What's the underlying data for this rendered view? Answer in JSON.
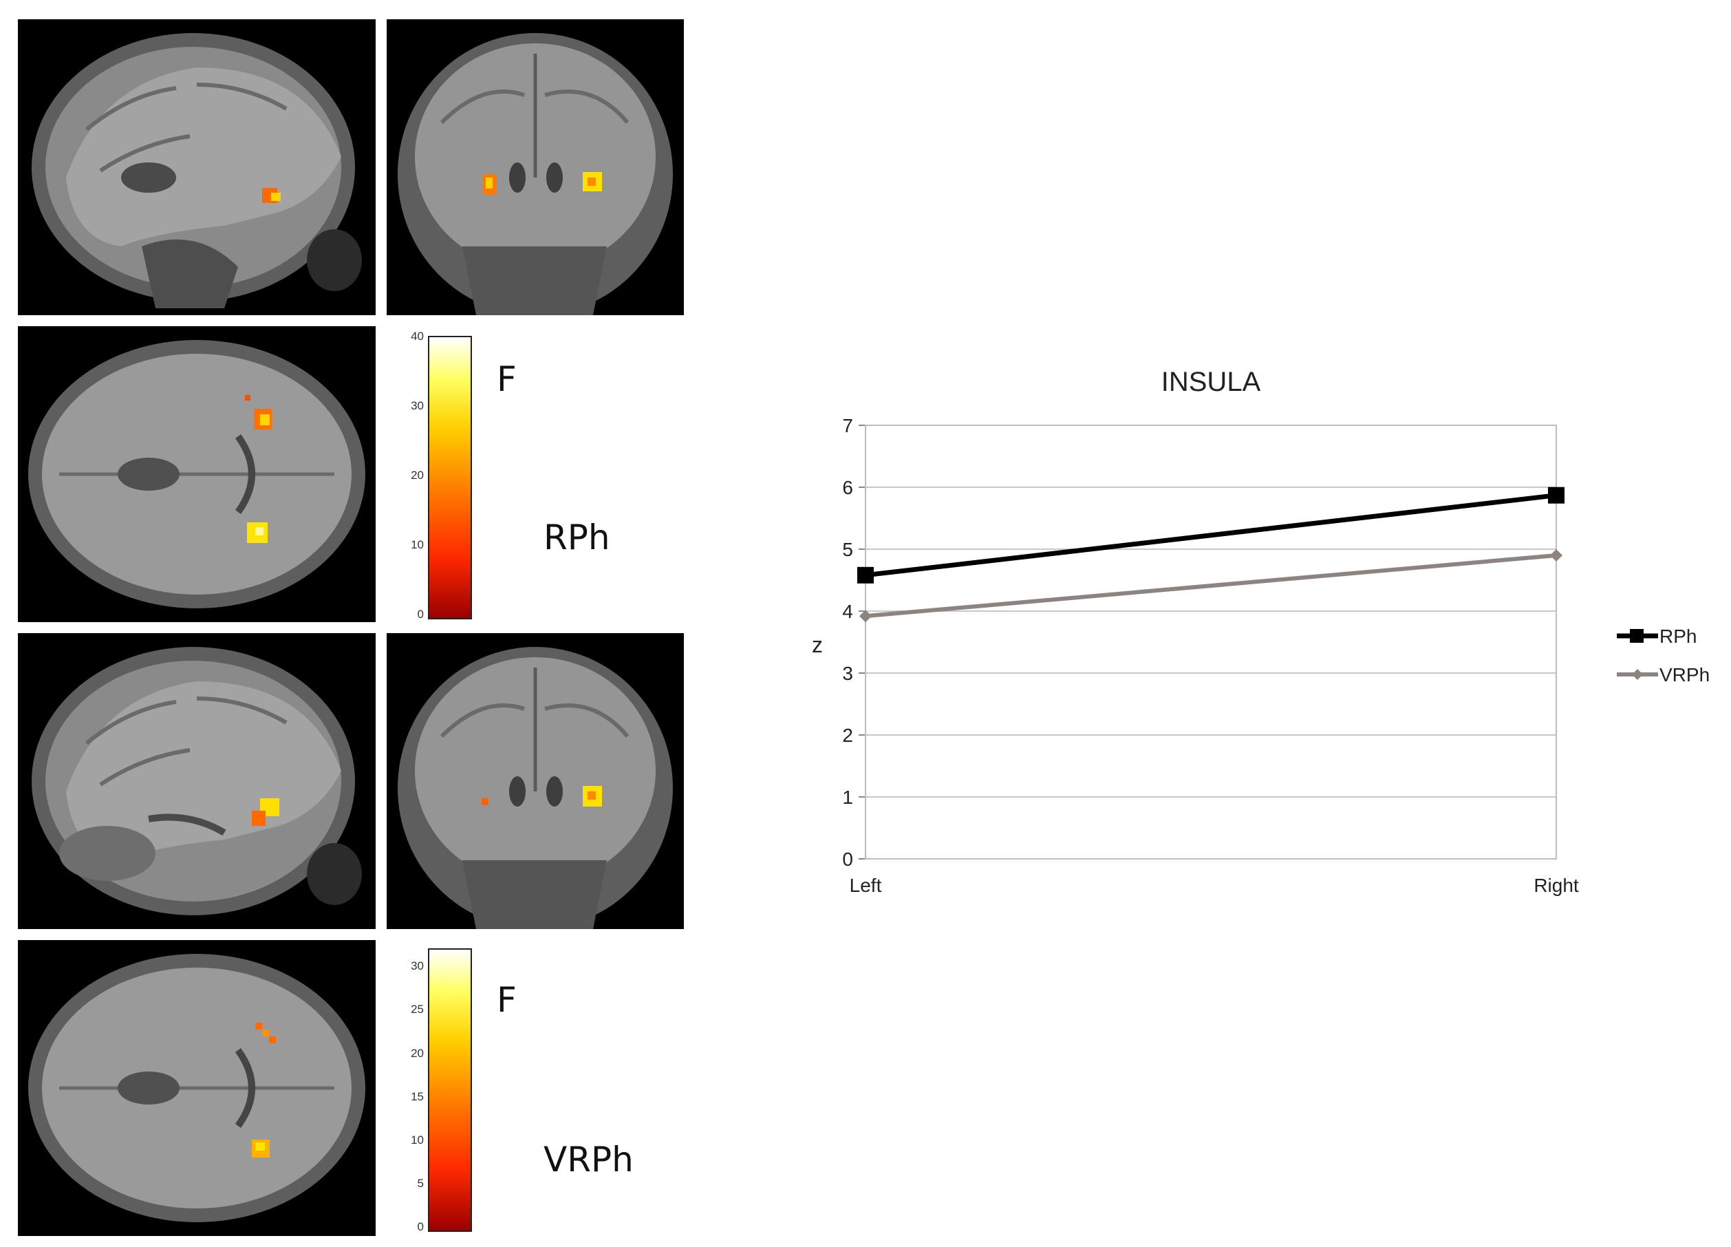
{
  "figure": {
    "rows": [
      {
        "views": [
          "sagittal",
          "coronal"
        ],
        "blobs": "rph"
      },
      {
        "views": [
          "axial"
        ],
        "colorbar": {
          "ticks": [
            "0",
            "10",
            "20",
            "30",
            "40"
          ],
          "max": 40
        },
        "f_label": "F",
        "condition_label": "RPh"
      },
      {
        "views": [
          "sagittal",
          "coronal"
        ],
        "blobs": "vrph"
      },
      {
        "views": [
          "axial"
        ],
        "colorbar": {
          "ticks": [
            "0",
            "5",
            "10",
            "15",
            "20",
            "25",
            "30"
          ],
          "max": 32
        },
        "f_label": "F",
        "condition_label": "VRPh"
      }
    ]
  },
  "colorbar_top": {
    "ticks": [
      "0",
      "10",
      "20",
      "30",
      "40"
    ]
  },
  "colorbar_bottom": {
    "ticks": [
      "0",
      "5",
      "10",
      "15",
      "20",
      "25",
      "30"
    ]
  },
  "labels": {
    "f_top": "F",
    "f_bottom": "F",
    "cond_top": "RPh",
    "cond_bottom": "VRPh"
  },
  "chart_data": {
    "type": "line",
    "title": "INSULA",
    "xlabel": "",
    "ylabel": "z",
    "categories": [
      "Left",
      "Right"
    ],
    "ylim": [
      0,
      7
    ],
    "yticks": [
      0,
      1,
      2,
      3,
      4,
      5,
      6,
      7
    ],
    "grid": true,
    "legend": "right",
    "series": [
      {
        "name": "RPh",
        "values": [
          4.58,
          5.87
        ],
        "color": "#000000",
        "marker": "square"
      },
      {
        "name": "VRPh",
        "values": [
          3.92,
          4.9
        ],
        "color": "#8c8480",
        "marker": "diamond"
      }
    ]
  }
}
